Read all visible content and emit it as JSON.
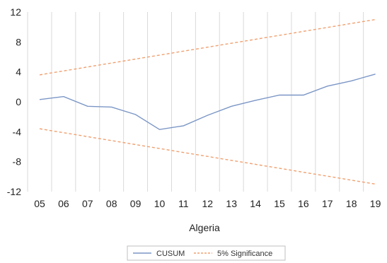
{
  "chart_data": {
    "type": "line",
    "xlabel": "Algeria",
    "ylabel": "",
    "categories": [
      "05",
      "06",
      "07",
      "08",
      "09",
      "10",
      "11",
      "12",
      "13",
      "14",
      "15",
      "16",
      "17",
      "18",
      "19"
    ],
    "ylim": [
      -12,
      12
    ],
    "yticks": [
      12,
      8,
      4,
      0,
      -4,
      -8,
      -12
    ],
    "ytick_labels": [
      "12",
      "8",
      "4",
      "0",
      "-4",
      "-8",
      "-12"
    ],
    "grid": "vertical",
    "legend_position": "bottom",
    "series": [
      {
        "name": "CUSUM",
        "color": "#7b96c6",
        "style": "solid",
        "x": [
          5,
          6,
          7,
          8,
          9,
          10,
          11,
          12,
          13,
          14,
          15,
          16,
          17,
          18,
          19
        ],
        "values": [
          0.3,
          0.7,
          -0.6,
          -0.7,
          -1.7,
          -3.7,
          -3.2,
          -1.8,
          -0.6,
          0.2,
          0.9,
          0.9,
          2.1,
          2.8,
          3.7
        ]
      },
      {
        "name": "5% Significance",
        "color": "#f0a070",
        "style": "dashed",
        "x": [
          5,
          19
        ],
        "values": [
          3.6,
          11.0
        ]
      },
      {
        "name": "",
        "color": "#f0a070",
        "style": "dashed",
        "x": [
          5,
          19
        ],
        "values": [
          -3.6,
          -11.0
        ]
      }
    ]
  }
}
